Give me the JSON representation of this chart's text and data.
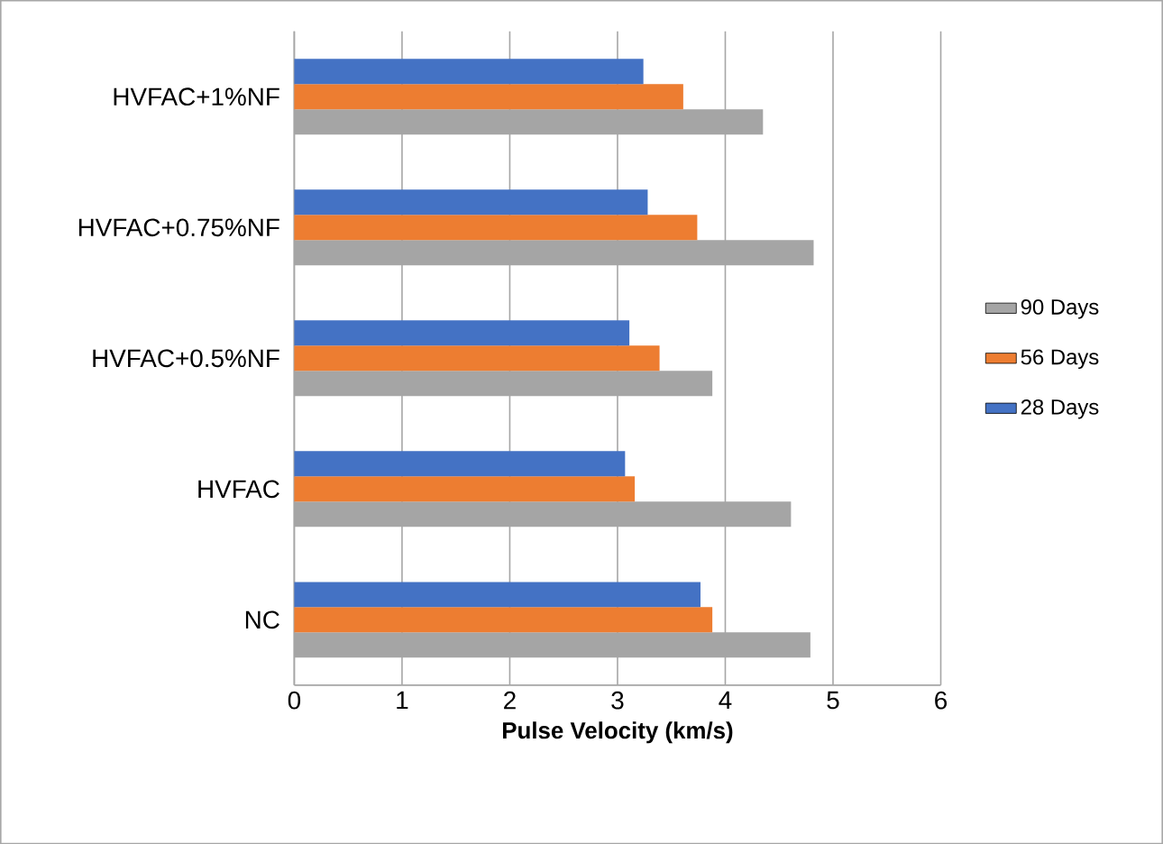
{
  "chart_data": {
    "type": "bar",
    "orientation": "horizontal",
    "xlabel": "Pulse Velocity (km/s)",
    "categories": [
      "HVFAC+1%NF",
      "HVFAC+0.75%NF",
      "HVFAC+0.5%NF",
      "HVFAC",
      "NC"
    ],
    "series": [
      {
        "name": "90 Days",
        "color": "#a5a5a5",
        "values": [
          4.35,
          4.82,
          3.88,
          4.61,
          4.79
        ]
      },
      {
        "name": "56 Days",
        "color": "#ed7d31",
        "values": [
          3.61,
          3.74,
          3.39,
          3.16,
          3.88
        ]
      },
      {
        "name": "28 Days",
        "color": "#4472c4",
        "values": [
          3.24,
          3.28,
          3.11,
          3.07,
          3.77
        ]
      }
    ],
    "xlim": [
      0,
      6
    ],
    "xticks": [
      0,
      1,
      2,
      3,
      4,
      5,
      6
    ],
    "grid": "x",
    "legend": "right"
  }
}
